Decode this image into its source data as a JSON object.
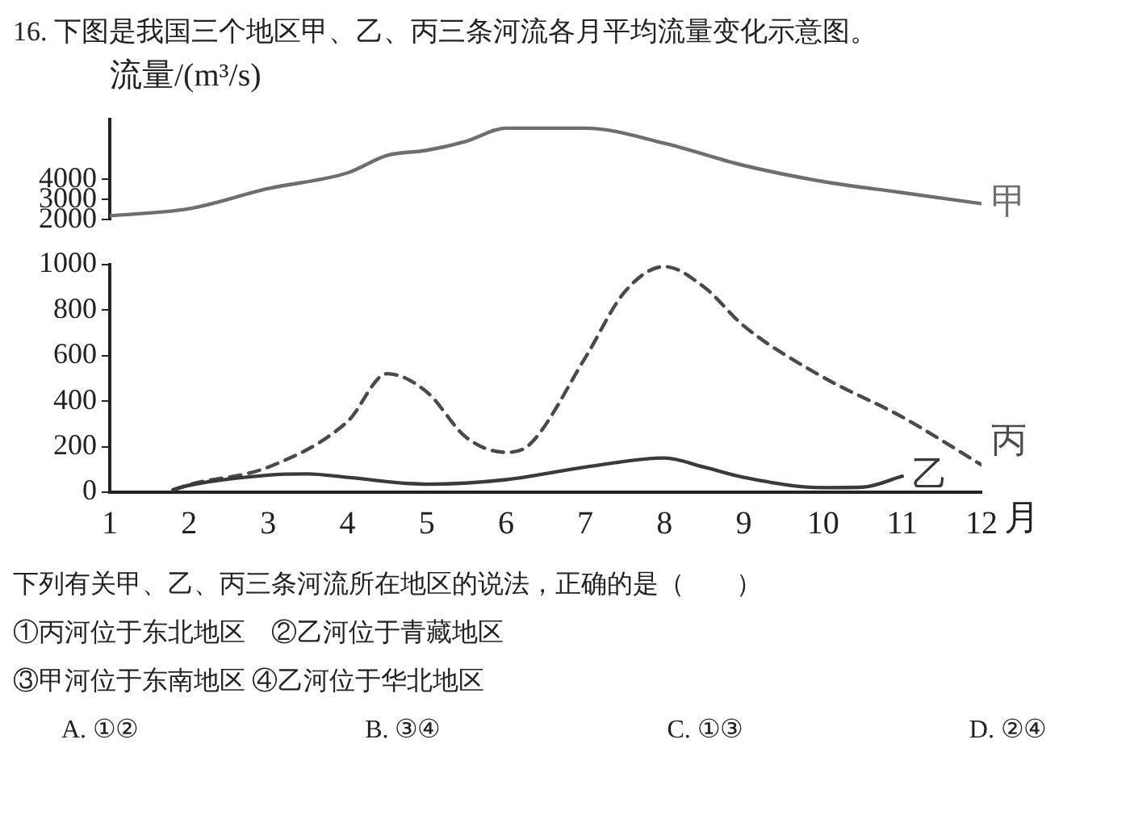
{
  "chart_data": [
    {
      "type": "line",
      "title": "16. 下图是我国三个地区甲、乙、丙三条河流各月平均流量变化示意图。",
      "ylabel": "流量/(m³/s)",
      "xlim": [
        1,
        12
      ],
      "xticks": [
        1,
        2,
        3,
        4,
        5,
        6,
        7,
        8,
        9,
        10,
        11,
        12
      ],
      "ylim": [
        2000,
        7000
      ],
      "yticks": [
        2000,
        3000,
        4000
      ],
      "tick_labels": "y",
      "marker": "none",
      "grid": false,
      "series": [
        {
          "name": "甲",
          "color": "#6e6e6e",
          "line_style": "solid",
          "x": [
            1,
            2,
            3,
            4,
            4.5,
            5,
            5.5,
            6,
            7,
            8,
            9,
            10,
            11,
            12
          ],
          "values": [
            2200,
            2550,
            3550,
            4330,
            5200,
            5450,
            5900,
            6550,
            6550,
            5800,
            4700,
            3900,
            3350,
            2800
          ]
        }
      ]
    },
    {
      "type": "line",
      "xlabel": "月",
      "xlim": [
        1,
        12
      ],
      "xticks": [
        1,
        2,
        3,
        4,
        5,
        6,
        7,
        8,
        9,
        10,
        11,
        12
      ],
      "ylim": [
        0,
        1000
      ],
      "yticks": [
        0,
        200,
        400,
        600,
        800,
        1000
      ],
      "marker": "none",
      "grid": false,
      "series": [
        {
          "name": "乙",
          "color": "#3a3a3a",
          "line_style": "solid",
          "x": [
            1.8,
            2,
            3,
            3.5,
            4,
            5,
            6,
            7,
            8,
            8.5,
            9,
            10,
            10.5,
            11
          ],
          "values": [
            10,
            30,
            75,
            80,
            65,
            35,
            55,
            110,
            150,
            110,
            65,
            20,
            22,
            70
          ]
        },
        {
          "name": "丙",
          "color": "#4a4a4a",
          "line_style": "dashed",
          "x": [
            1.8,
            2,
            3,
            4,
            4.5,
            5,
            5.5,
            6,
            6.3,
            7,
            7.5,
            8,
            8.5,
            9,
            10,
            11,
            12
          ],
          "values": [
            10,
            33,
            110,
            310,
            520,
            440,
            240,
            175,
            210,
            590,
            880,
            990,
            900,
            730,
            505,
            330,
            120
          ]
        }
      ],
      "annotations": [
        "下列有关甲、乙、丙三条河流所在地区的说法，正确的是（　　）",
        "①丙河位于东北地区　②乙河位于青藏地区",
        "③甲河位于东南地区 ④乙河位于华北地区",
        "A. ①②",
        "B. ③④",
        "C. ①③",
        "D. ②④"
      ]
    }
  ]
}
